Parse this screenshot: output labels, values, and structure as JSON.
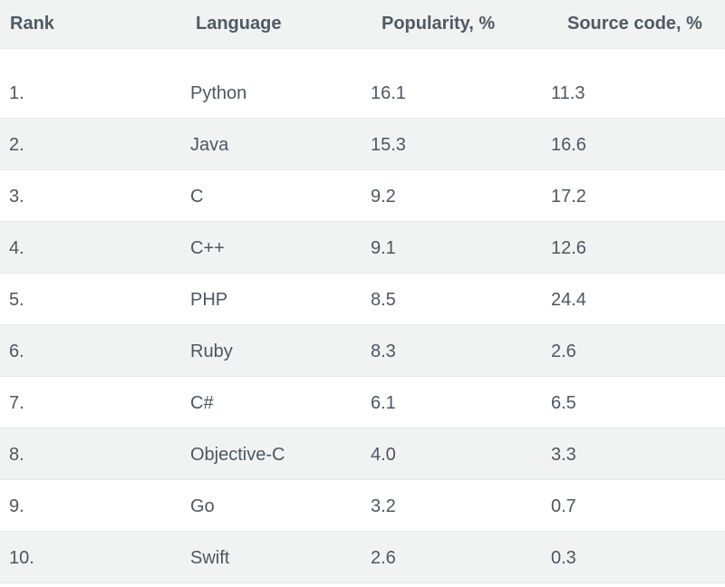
{
  "header": {
    "rank": "Rank",
    "language": "Language",
    "popularity": "Popularity, %",
    "source_code": "Source code, %"
  },
  "rows": [
    {
      "rank": "1.",
      "language": "Python",
      "popularity": "16.1",
      "source_code": "11.3"
    },
    {
      "rank": "2.",
      "language": "Java",
      "popularity": "15.3",
      "source_code": "16.6"
    },
    {
      "rank": "3.",
      "language": "C",
      "popularity": "9.2",
      "source_code": "17.2"
    },
    {
      "rank": "4.",
      "language": "C++",
      "popularity": "9.1",
      "source_code": "12.6"
    },
    {
      "rank": "5.",
      "language": "PHP",
      "popularity": "8.5",
      "source_code": "24.4"
    },
    {
      "rank": "6.",
      "language": "Ruby",
      "popularity": "8.3",
      "source_code": "2.6"
    },
    {
      "rank": "7.",
      "language": "C#",
      "popularity": "6.1",
      "source_code": "6.5"
    },
    {
      "rank": "8.",
      "language": "Objective-C",
      "popularity": "4.0",
      "source_code": "3.3"
    },
    {
      "rank": "9.",
      "language": "Go",
      "popularity": "3.2",
      "source_code": "0.7"
    },
    {
      "rank": "10.",
      "language": "Swift",
      "popularity": "2.6",
      "source_code": "0.3"
    }
  ],
  "colors": {
    "header_background": "#f1f2f2",
    "stripe_background": "#f1f2f2",
    "text": "#4d5760"
  }
}
